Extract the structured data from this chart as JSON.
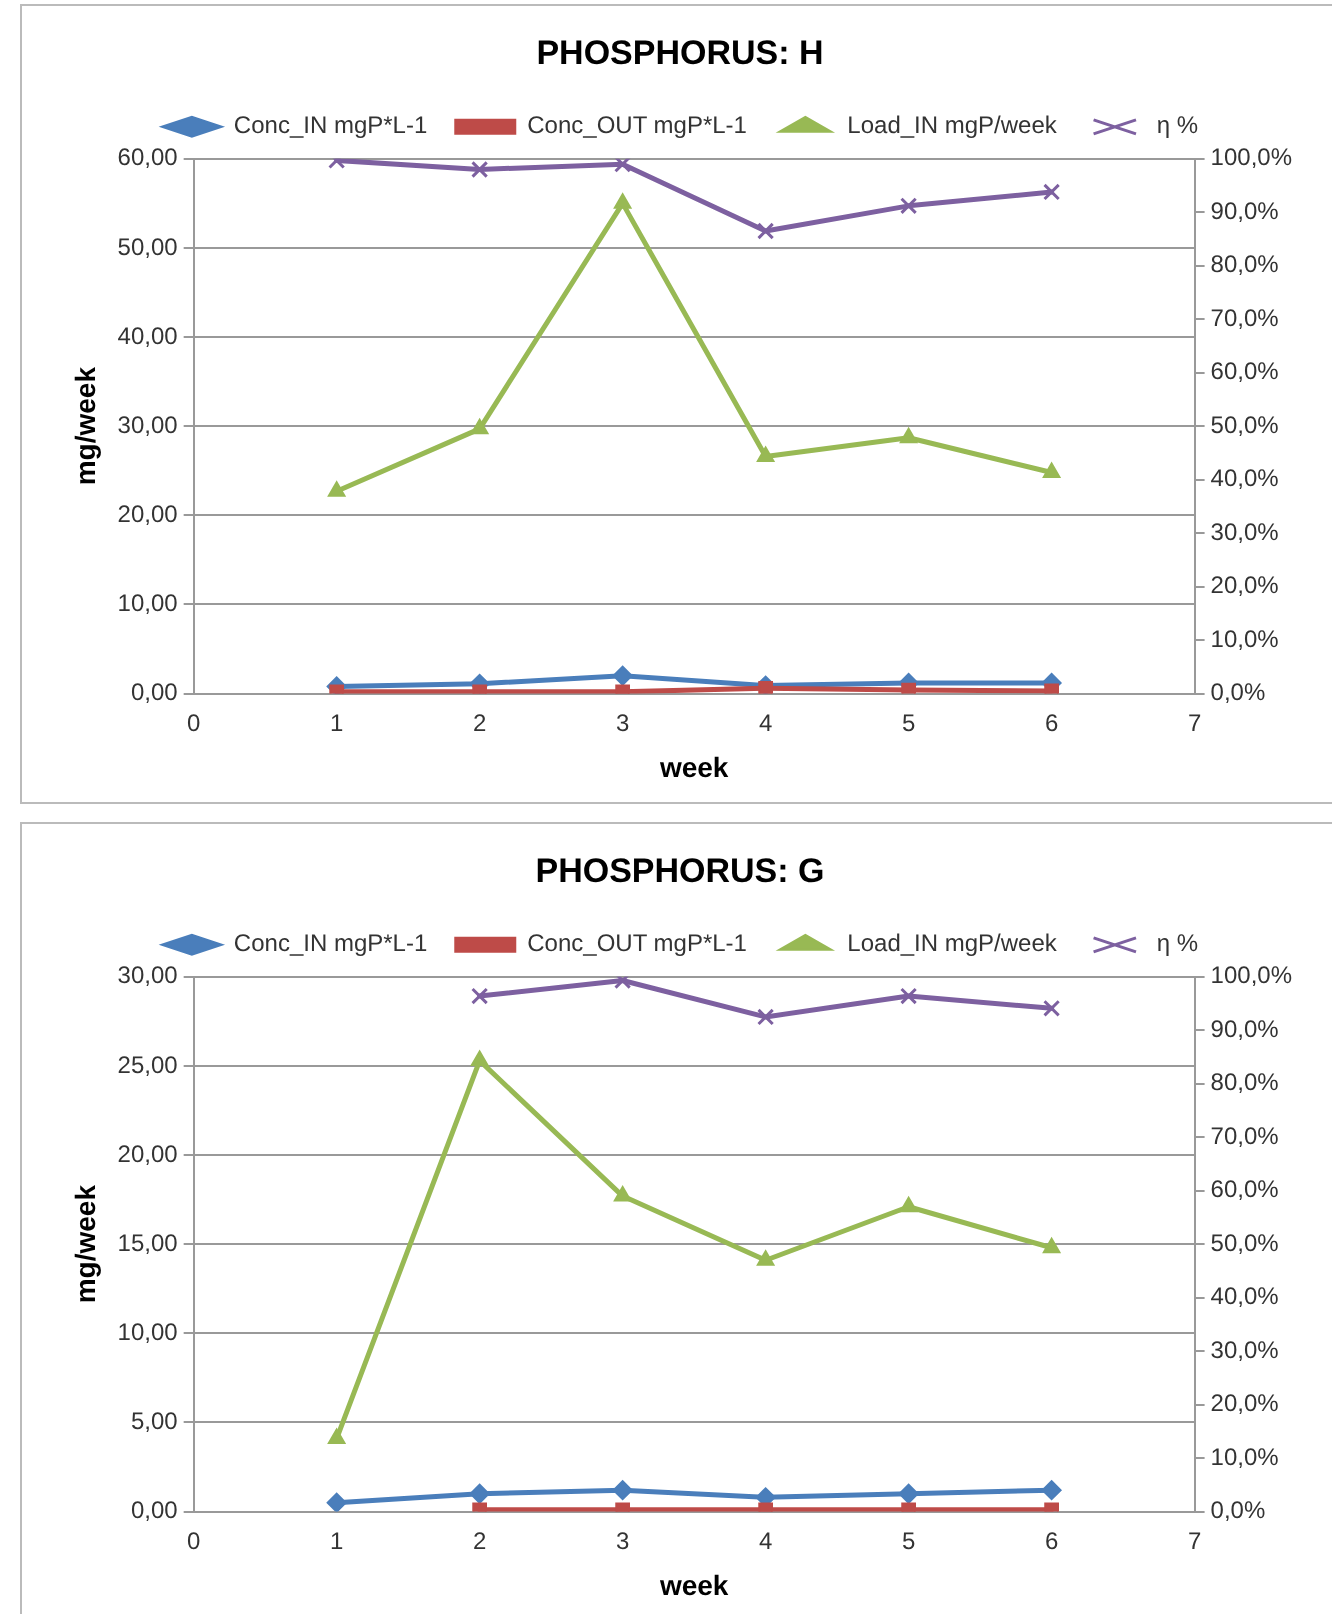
{
  "chart_data": [
    {
      "type": "line",
      "title": "PHOSPHORUS: H",
      "xlabel": "week",
      "ylabel": "mg/week",
      "x": [
        1,
        2,
        3,
        4,
        5,
        6
      ],
      "xlim": [
        0,
        7
      ],
      "xticks": [
        0,
        1,
        2,
        3,
        4,
        5,
        6,
        7
      ],
      "ylim": [
        0,
        60
      ],
      "yticks": [
        {
          "value": 0,
          "label": "0,00"
        },
        {
          "value": 10,
          "label": "10,00"
        },
        {
          "value": 20,
          "label": "20,00"
        },
        {
          "value": 30,
          "label": "30,00"
        },
        {
          "value": 40,
          "label": "40,00"
        },
        {
          "value": 50,
          "label": "50,00"
        },
        {
          "value": 60,
          "label": "60,00"
        }
      ],
      "y2lim": [
        0,
        100
      ],
      "y2ticks": [
        {
          "value": 0,
          "label": "0,0%"
        },
        {
          "value": 10,
          "label": "10,0%"
        },
        {
          "value": 20,
          "label": "20,0%"
        },
        {
          "value": 30,
          "label": "30,0%"
        },
        {
          "value": 40,
          "label": "40,0%"
        },
        {
          "value": 50,
          "label": "50,0%"
        },
        {
          "value": 60,
          "label": "60,0%"
        },
        {
          "value": 70,
          "label": "70,0%"
        },
        {
          "value": 80,
          "label": "80,0%"
        },
        {
          "value": 90,
          "label": "90,0%"
        },
        {
          "value": 100,
          "label": "100,0%"
        }
      ],
      "grid": "y",
      "legend": "top",
      "line_style": "solid",
      "series": [
        {
          "name": "Conc_IN mgP*L-1",
          "color": "#4a7ebb",
          "marker": "diamond",
          "values": [
            0.8,
            1.1,
            2.0,
            0.9,
            1.2,
            1.2
          ]
        },
        {
          "name": "Conc_OUT mgP*L-1",
          "color": "#be4b48",
          "marker": "square",
          "values": [
            0.2,
            0.2,
            0.2,
            0.6,
            0.4,
            0.3
          ]
        },
        {
          "name": "Load_IN mgP/week",
          "color": "#98b954",
          "marker": "triangle",
          "values": [
            22.7,
            29.7,
            55.0,
            26.6,
            28.7,
            24.8
          ]
        },
        {
          "name": "η %",
          "color": "#7d60a0",
          "marker": "cross",
          "axis": "y2",
          "values": [
            99.7,
            98.0,
            99.0,
            86.5,
            91.2,
            93.8
          ]
        }
      ]
    },
    {
      "type": "line",
      "title": "PHOSPHORUS: G",
      "xlabel": "week",
      "ylabel": "mg/week",
      "x": [
        1,
        2,
        3,
        4,
        5,
        6
      ],
      "xlim": [
        0,
        7
      ],
      "xticks": [
        0,
        1,
        2,
        3,
        4,
        5,
        6,
        7
      ],
      "ylim": [
        0,
        30
      ],
      "yticks": [
        {
          "value": 0,
          "label": "0,00"
        },
        {
          "value": 5,
          "label": "5,00"
        },
        {
          "value": 10,
          "label": "10,00"
        },
        {
          "value": 15,
          "label": "15,00"
        },
        {
          "value": 20,
          "label": "20,00"
        },
        {
          "value": 25,
          "label": "25,00"
        },
        {
          "value": 30,
          "label": "30,00"
        }
      ],
      "y2lim": [
        0,
        100
      ],
      "y2ticks": [
        {
          "value": 0,
          "label": "0,0%"
        },
        {
          "value": 10,
          "label": "10,0%"
        },
        {
          "value": 20,
          "label": "20,0%"
        },
        {
          "value": 30,
          "label": "30,0%"
        },
        {
          "value": 40,
          "label": "40,0%"
        },
        {
          "value": 50,
          "label": "50,0%"
        },
        {
          "value": 60,
          "label": "60,0%"
        },
        {
          "value": 70,
          "label": "70,0%"
        },
        {
          "value": 80,
          "label": "80,0%"
        },
        {
          "value": 90,
          "label": "90,0%"
        },
        {
          "value": 100,
          "label": "100,0%"
        }
      ],
      "grid": "y",
      "legend": "top",
      "line_style": "solid",
      "series": [
        {
          "name": "Conc_IN mgP*L-1",
          "color": "#4a7ebb",
          "marker": "diamond",
          "values": [
            0.5,
            1.0,
            1.2,
            0.8,
            1.0,
            1.2
          ]
        },
        {
          "name": "Conc_OUT mgP*L-1",
          "color": "#be4b48",
          "marker": "square",
          "values": [
            null,
            0.1,
            0.1,
            0.1,
            0.1,
            0.1
          ]
        },
        {
          "name": "Load_IN mgP/week",
          "color": "#98b954",
          "marker": "triangle",
          "values": [
            4.1,
            25.3,
            17.7,
            14.1,
            17.1,
            14.8
          ]
        },
        {
          "name": "η %",
          "color": "#7d60a0",
          "marker": "cross",
          "axis": "y2",
          "values": [
            null,
            96.4,
            99.3,
            92.5,
            96.4,
            94.1
          ]
        }
      ]
    }
  ]
}
